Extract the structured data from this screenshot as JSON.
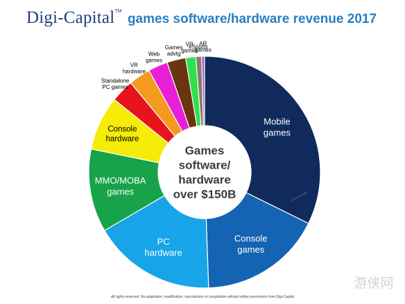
{
  "header": {
    "brand": "Digi-Capital",
    "brand_tm": "TM",
    "title": "games software/hardware revenue 2017"
  },
  "chart_data": {
    "type": "pie",
    "title": "games software/hardware revenue 2017",
    "center_label": [
      "Games",
      "software/",
      "hardware",
      "over $150B"
    ],
    "slices": [
      {
        "label": "Mobile games",
        "value": 32.0,
        "color": "#102a5c"
      },
      {
        "label": "Console games",
        "value": 17.0,
        "color": "#1563b3"
      },
      {
        "label": "PC hardware",
        "value": 17.0,
        "color": "#18a4e8"
      },
      {
        "label": "MMO/MOBA games",
        "value": 11.5,
        "color": "#16a34a"
      },
      {
        "label": "Console hardware",
        "value": 7.5,
        "color": "#f5ec08"
      },
      {
        "label": "Standalone PC games",
        "value": 3.2,
        "color": "#e8141b"
      },
      {
        "label": "VR hardware",
        "value": 3.0,
        "color": "#f49a1e"
      },
      {
        "label": "Web games",
        "value": 2.7,
        "color": "#e81fd8"
      },
      {
        "label": "Games advtg",
        "value": 2.6,
        "color": "#6b3410"
      },
      {
        "label": "VR games",
        "value": 1.4,
        "color": "#2ee04a"
      },
      {
        "label": "eSports",
        "value": 0.8,
        "color": "#8a7a6a"
      },
      {
        "label": "AR games",
        "value": 0.4,
        "color": "#9966cc"
      }
    ],
    "labels": [
      {
        "lines": [
          "Mobile",
          "games"
        ],
        "color": "#ffffff",
        "size": "large"
      },
      {
        "lines": [
          "Console",
          "games"
        ],
        "color": "#ffffff",
        "size": "large"
      },
      {
        "lines": [
          "PC",
          "hardware"
        ],
        "color": "#ffffff",
        "size": "large"
      },
      {
        "lines": [
          "MMO/MOBA",
          "games"
        ],
        "color": "#ffffff",
        "size": "large"
      },
      {
        "lines": [
          "Console",
          "hardware"
        ],
        "color": "#000000",
        "size": "medium"
      },
      {
        "lines": [
          "Standalone",
          "PC games"
        ],
        "color": "#000000",
        "size": "small"
      },
      {
        "lines": [
          "VR",
          "hardware"
        ],
        "color": "#000000",
        "size": "small"
      },
      {
        "lines": [
          "Web",
          "games"
        ],
        "color": "#000000",
        "size": "small"
      },
      {
        "lines": [
          "Games",
          "advtg"
        ],
        "color": "#000000",
        "size": "small"
      },
      {
        "lines": [
          "VR",
          "games"
        ],
        "color": "#000000",
        "size": "small"
      },
      {
        "lines": [
          "eSports"
        ],
        "color": "#000000",
        "size": "small"
      },
      {
        "lines": [
          "AR",
          "games"
        ],
        "color": "#000000",
        "size": "small"
      }
    ],
    "legend": "none",
    "grid": false
  },
  "footer": {
    "text": "All rights reserved. No adaptation, modification, reproduction or compilation without written permission from Digi-Capital"
  },
  "watermark": {
    "text": "游侠网"
  },
  "credit": {
    "text": "© 2017 Digi-Capital"
  }
}
